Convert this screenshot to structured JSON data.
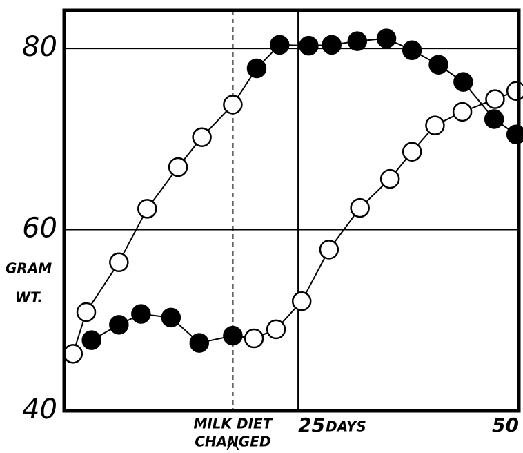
{
  "chart_data": {
    "type": "line",
    "ylabel": [
      "GRAM",
      "WT."
    ],
    "xlabel": "DAYS",
    "annotation": {
      "lines": [
        "MILK DIET",
        "CHANGED"
      ],
      "x": 17.6
    },
    "xlim": [
      -1.5,
      50
    ],
    "xticks": [
      25,
      50
    ],
    "ylim": [
      40,
      84.2
    ],
    "yticks": [
      40,
      60,
      80
    ],
    "grid": true,
    "series": [
      {
        "color": "#000000",
        "x": [
          -0.5,
          1.0,
          4.7,
          7.9,
          11.4,
          14.1,
          17.6,
          20.3,
          22.9,
          26.2,
          28.8,
          31.7,
          35.0,
          37.9,
          40.9,
          43.7,
          47.2,
          49.7
        ],
        "values": [
          46.3,
          50.9,
          56.4,
          62.3,
          66.9,
          70.2,
          73.8,
          77.8,
          80.4,
          80.3,
          80.4,
          80.8,
          81.1,
          79.8,
          78.2,
          76.3,
          72.2,
          70.5
        ],
        "filled": [
          false,
          false,
          false,
          false,
          false,
          false,
          false,
          true,
          true,
          true,
          true,
          true,
          true,
          true,
          true,
          true,
          true,
          true
        ]
      },
      {
        "color": "#000000",
        "x": [
          1.6,
          4.7,
          7.2,
          10.6,
          13.8,
          17.6,
          20.0,
          22.5,
          25.4,
          28.5,
          32.0,
          35.4,
          37.9,
          40.5,
          43.6,
          47.3,
          49.7
        ],
        "values": [
          47.8,
          49.5,
          50.7,
          50.3,
          47.5,
          48.3,
          48.0,
          49.0,
          52.1,
          57.8,
          62.4,
          65.6,
          68.6,
          71.5,
          73.0,
          74.4,
          75.3
        ],
        "filled": [
          true,
          true,
          true,
          true,
          true,
          true,
          false,
          false,
          false,
          false,
          false,
          false,
          false,
          false,
          false,
          false,
          false
        ]
      }
    ]
  }
}
